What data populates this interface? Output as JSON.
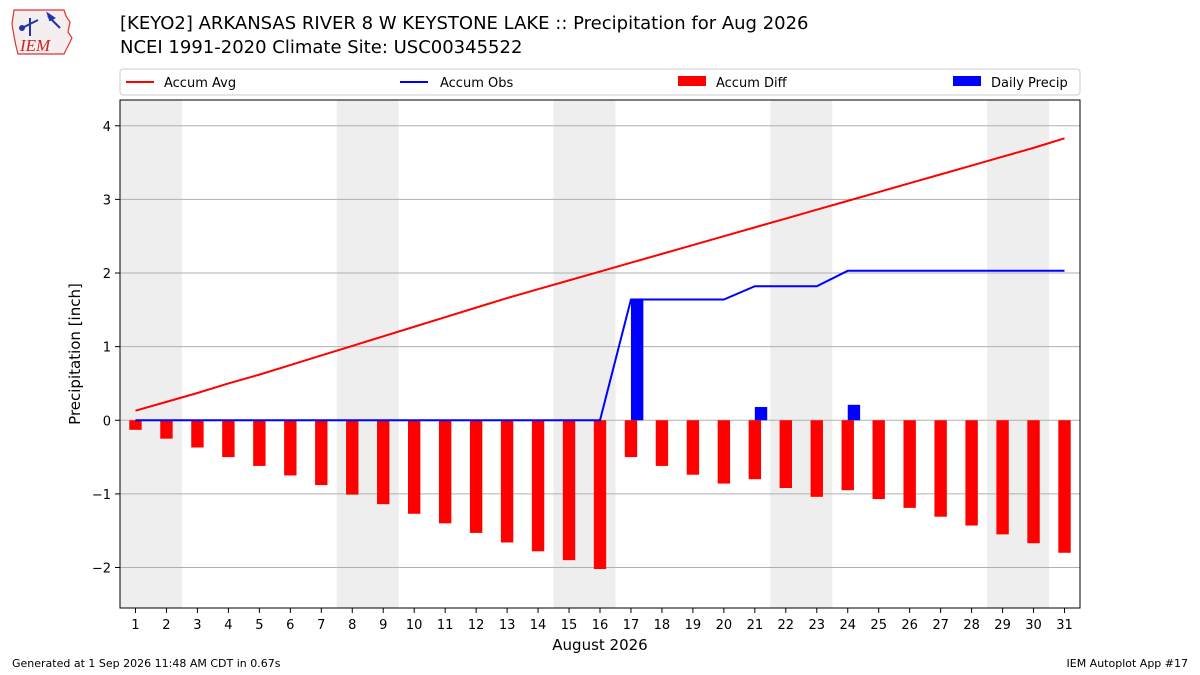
{
  "header": {
    "title_line1": "[KEYO2] ARKANSAS RIVER 8 W KEYSTONE LAKE :: Precipitation for Aug 2026",
    "title_line2": "NCEI 1991-2020 Climate Site: USC00345522",
    "logo_text": "IEM"
  },
  "footer": {
    "generated": "Generated at 1 Sep 2026 11:48 AM CDT in 0.67s",
    "app": "IEM Autoplot App #17"
  },
  "colors": {
    "avg": "#ff0000",
    "obs": "#0000ff",
    "diff": "#ff0000",
    "daily": "#0000ff",
    "weekend": "#eeeeee",
    "grid": "#b0b0b0"
  },
  "chart_data": {
    "type": "bar",
    "xlabel": "August 2026",
    "ylabel": "Precipitation [inch]",
    "ylim": [
      -2.55,
      4.35
    ],
    "yticks": [
      4,
      3,
      2,
      1,
      0,
      -1,
      -2
    ],
    "ytick_labels": [
      "4",
      "3",
      "2",
      "1",
      "0",
      "−1",
      "−2"
    ],
    "x": [
      1,
      2,
      3,
      4,
      5,
      6,
      7,
      8,
      9,
      10,
      11,
      12,
      13,
      14,
      15,
      16,
      17,
      18,
      19,
      20,
      21,
      22,
      23,
      24,
      25,
      26,
      27,
      28,
      29,
      30,
      31
    ],
    "weekend_bands": [
      [
        1,
        2
      ],
      [
        8,
        9
      ],
      [
        15,
        16
      ],
      [
        22,
        23
      ],
      [
        29,
        30
      ]
    ],
    "legend": {
      "placement": "top",
      "entries": [
        "Accum Avg",
        "Accum Obs",
        "Accum Diff",
        "Daily Precip"
      ]
    },
    "series": [
      {
        "name": "Accum Avg",
        "kind": "line",
        "values": [
          0.13,
          0.25,
          0.37,
          0.5,
          0.62,
          0.75,
          0.88,
          1.01,
          1.14,
          1.27,
          1.4,
          1.53,
          1.66,
          1.78,
          1.9,
          2.02,
          2.14,
          2.26,
          2.38,
          2.5,
          2.62,
          2.74,
          2.86,
          2.98,
          3.1,
          3.22,
          3.34,
          3.46,
          3.58,
          3.7,
          3.83
        ]
      },
      {
        "name": "Accum Obs",
        "kind": "line",
        "values": [
          0,
          0,
          0,
          0,
          0,
          0,
          0,
          0,
          0,
          0,
          0,
          0,
          0,
          0,
          0,
          0,
          1.64,
          1.64,
          1.64,
          1.64,
          1.82,
          1.82,
          1.82,
          2.03,
          2.03,
          2.03,
          2.03,
          2.03,
          2.03,
          2.03,
          2.03
        ]
      },
      {
        "name": "Accum Diff",
        "kind": "bar",
        "values": [
          -0.13,
          -0.25,
          -0.37,
          -0.5,
          -0.62,
          -0.75,
          -0.88,
          -1.01,
          -1.14,
          -1.27,
          -1.4,
          -1.53,
          -1.66,
          -1.78,
          -1.9,
          -2.02,
          -0.5,
          -0.62,
          -0.74,
          -0.86,
          -0.8,
          -0.92,
          -1.04,
          -0.95,
          -1.07,
          -1.19,
          -1.31,
          -1.43,
          -1.55,
          -1.67,
          -1.8
        ]
      },
      {
        "name": "Daily Precip",
        "kind": "bar",
        "values": [
          0,
          0,
          0,
          0,
          0,
          0,
          0,
          0,
          0,
          0,
          0,
          0,
          0,
          0,
          0,
          0,
          1.64,
          0,
          0,
          0,
          0.18,
          0,
          0,
          0.21,
          0,
          0,
          0,
          0,
          0,
          0,
          0
        ]
      }
    ]
  }
}
